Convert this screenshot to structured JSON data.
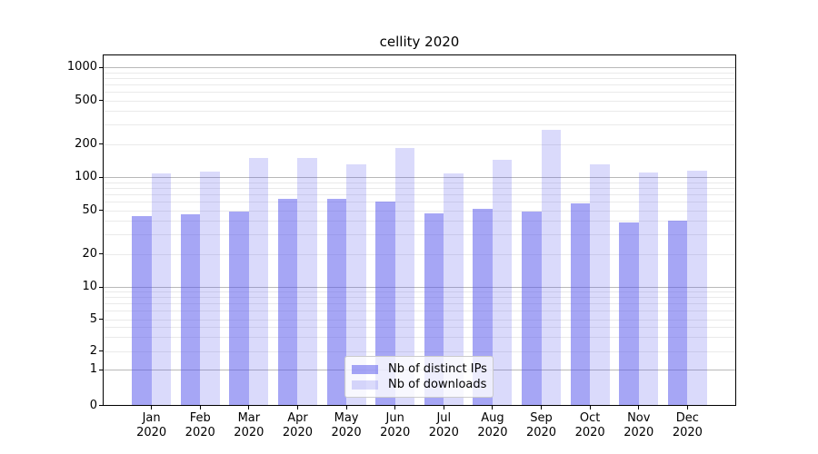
{
  "figure": {
    "title": "cellity 2020"
  },
  "chart_data": {
    "type": "bar",
    "title": "cellity 2020",
    "categories": [
      "Jan",
      "Feb",
      "Mar",
      "Apr",
      "May",
      "Jun",
      "Jul",
      "Aug",
      "Sep",
      "Oct",
      "Nov",
      "Dec"
    ],
    "category_year": "2020",
    "series": [
      {
        "name": "Nb of distinct IPs",
        "color_hex": "#a6a6f2",
        "color_rgba": "rgba(85,85,235,0.52)",
        "values": [
          44,
          46,
          49,
          63,
          63,
          60,
          47,
          51,
          49,
          58,
          39,
          40
        ]
      },
      {
        "name": "Nb of downloads",
        "color_hex": "#d9d9f8",
        "color_rgba": "rgba(85,85,235,0.22)",
        "values": [
          107,
          112,
          148,
          148,
          130,
          185,
          107,
          144,
          270,
          130,
          111,
          114
        ]
      }
    ],
    "xlabel": "",
    "ylabel": "",
    "yscale": "log-like (symlog, linear below 1)",
    "y_tick_labels": [
      "1000",
      "500",
      "200",
      "100",
      "50",
      "20",
      "10",
      "5",
      "2",
      "1",
      "0"
    ],
    "y_tick_values": [
      1000,
      500,
      200,
      100,
      50,
      20,
      10,
      5,
      2,
      1,
      0
    ],
    "ylim": [
      0,
      1200
    ],
    "grid": "horizontal, major decades darker + minor 2-9 per decade faint, behind bars",
    "legend_position": "inside bottom-center",
    "legend_entries": [
      "Nb of distinct IPs",
      "Nb of downloads"
    ]
  }
}
